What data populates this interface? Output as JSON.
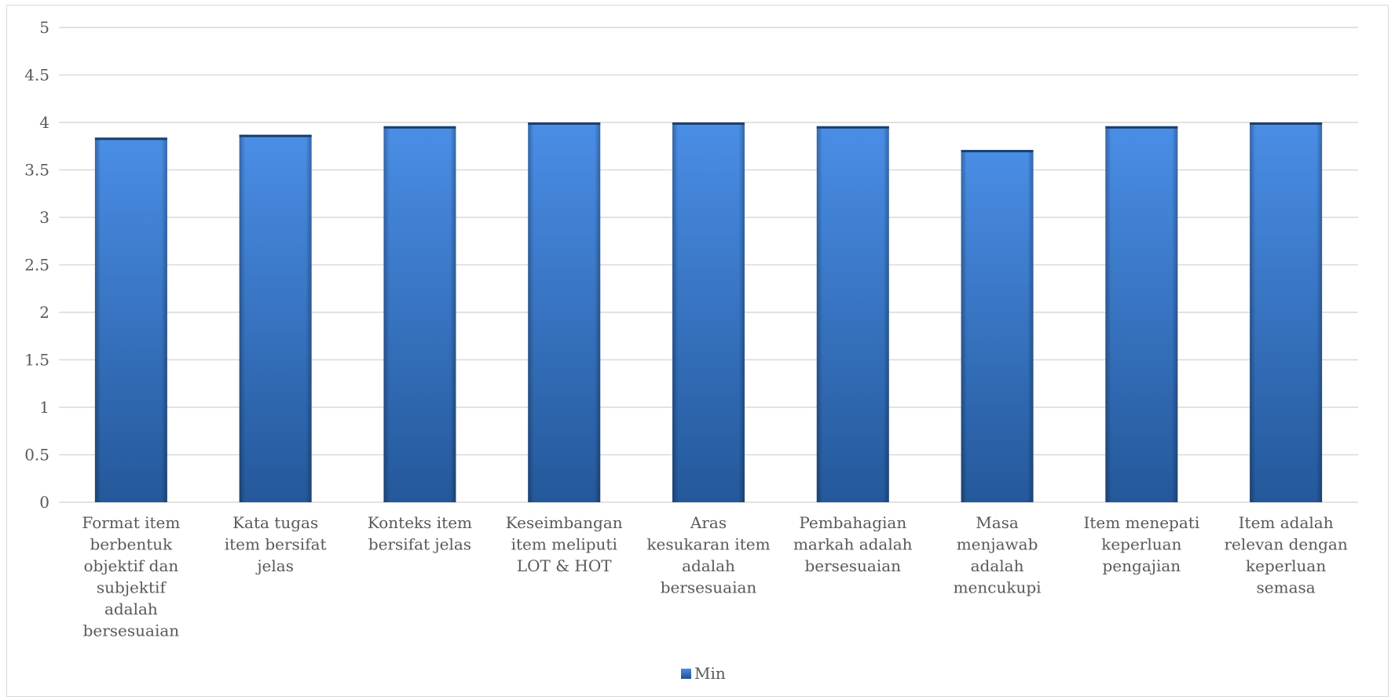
{
  "chart_data": {
    "type": "bar",
    "categories": [
      "Format item berbentuk objektif dan subjektif adalah bersesuaian",
      "Kata tugas item bersifat jelas",
      "Konteks item bersifat jelas",
      "Keseimbangan item meliputi LOT & HOT",
      "Aras kesukaran item adalah bersesuaian",
      "Pembahagian markah adalah bersesuaian",
      "Masa menjawab adalah mencukupi",
      "Item menepati keperluan pengajian",
      "Item adalah relevan dengan keperluan semasa"
    ],
    "category_lines": [
      [
        "Format item",
        "berbentuk",
        "objektif dan",
        "subjektif",
        "adalah",
        "bersesuaian"
      ],
      [
        "Kata tugas",
        "item bersifat",
        "jelas"
      ],
      [
        "Konteks item",
        "bersifat jelas"
      ],
      [
        "Keseimbangan",
        "item meliputi",
        "LOT & HOT"
      ],
      [
        "Aras",
        "kesukaran item",
        "adalah",
        "bersesuaian"
      ],
      [
        "Pembahagian",
        "markah adalah",
        "bersesuaian"
      ],
      [
        "Masa",
        "menjawab",
        "adalah",
        "mencukupi"
      ],
      [
        "Item menepati",
        "keperluan",
        "pengajian"
      ],
      [
        "Item adalah",
        "relevan dengan",
        "keperluan",
        "semasa"
      ]
    ],
    "series": [
      {
        "name": "Min",
        "values": [
          3.84,
          3.87,
          3.96,
          4.0,
          4.0,
          3.96,
          3.71,
          3.96,
          4.0
        ]
      }
    ],
    "ylim": [
      0,
      5
    ],
    "yticks": [
      "0",
      "0.5",
      "1",
      "1.5",
      "2",
      "2.5",
      "3",
      "3.5",
      "4",
      "4.5",
      "5"
    ],
    "grid": true,
    "legend_position": "bottom",
    "title": "",
    "xlabel": "",
    "ylabel": "",
    "colors": {
      "bar_light": "#4a8ee6",
      "bar_dark": "#1f4f8c",
      "grid": "#d9d9d9",
      "text": "#595959",
      "legend_swatch": "#2e6fc4"
    }
  }
}
